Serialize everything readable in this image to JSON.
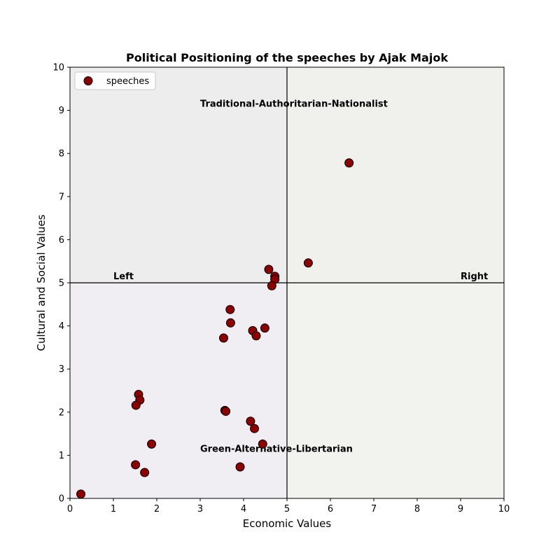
{
  "chart_data": {
    "type": "scatter",
    "title": "Political Positioning of the speeches by Ajak Majok",
    "xlabel": "Economic Values",
    "ylabel": "Cultural and Social Values",
    "xlim": [
      0,
      10
    ],
    "ylim": [
      0,
      10
    ],
    "xticks": [
      "0",
      "1",
      "2",
      "3",
      "4",
      "5",
      "6",
      "7",
      "8",
      "9",
      "10"
    ],
    "yticks": [
      "0",
      "1",
      "2",
      "3",
      "4",
      "5",
      "6",
      "7",
      "8",
      "9",
      "10"
    ],
    "grid": false,
    "legend": {
      "placement": "top-left",
      "label": "speeches"
    },
    "divider": {
      "x": 5,
      "y": 5
    },
    "quadrant_colors": {
      "top_left": "#ededed",
      "top_right": "#f0f1ec",
      "bottom_left": "#f0edf3",
      "bottom_right": "#f2f2ee"
    },
    "annotations": {
      "top": {
        "text": "Traditional-Authoritarian-Nationalist",
        "x": 3.0,
        "y": 9.0
      },
      "bottom": {
        "text": "Green-Alternative-Libertarian",
        "x": 3.0,
        "y": 1.0
      },
      "left": {
        "text": "Left",
        "x": 1.0,
        "y": 5.0
      },
      "right": {
        "text": "Right",
        "x": 9.0,
        "y": 5.0
      }
    },
    "series": [
      {
        "name": "speeches",
        "color": "#8b0000",
        "edgecolor": "#000000",
        "points": [
          {
            "x": 6.43,
            "y": 7.78
          },
          {
            "x": 5.49,
            "y": 5.46
          },
          {
            "x": 4.58,
            "y": 5.31
          },
          {
            "x": 4.72,
            "y": 5.15
          },
          {
            "x": 4.72,
            "y": 5.08
          },
          {
            "x": 4.65,
            "y": 4.93
          },
          {
            "x": 3.69,
            "y": 4.38
          },
          {
            "x": 3.7,
            "y": 4.07
          },
          {
            "x": 4.49,
            "y": 3.95
          },
          {
            "x": 4.21,
            "y": 3.89
          },
          {
            "x": 4.29,
            "y": 3.77
          },
          {
            "x": 3.54,
            "y": 3.72
          },
          {
            "x": 1.58,
            "y": 2.41
          },
          {
            "x": 1.61,
            "y": 2.28
          },
          {
            "x": 1.52,
            "y": 2.16
          },
          {
            "x": 3.57,
            "y": 2.04
          },
          {
            "x": 3.59,
            "y": 2.02
          },
          {
            "x": 4.16,
            "y": 1.79
          },
          {
            "x": 4.25,
            "y": 1.62
          },
          {
            "x": 1.88,
            "y": 1.26
          },
          {
            "x": 4.44,
            "y": 1.26
          },
          {
            "x": 1.51,
            "y": 0.78
          },
          {
            "x": 3.92,
            "y": 0.73
          },
          {
            "x": 1.72,
            "y": 0.6
          },
          {
            "x": 0.25,
            "y": 0.1
          }
        ]
      }
    ]
  }
}
